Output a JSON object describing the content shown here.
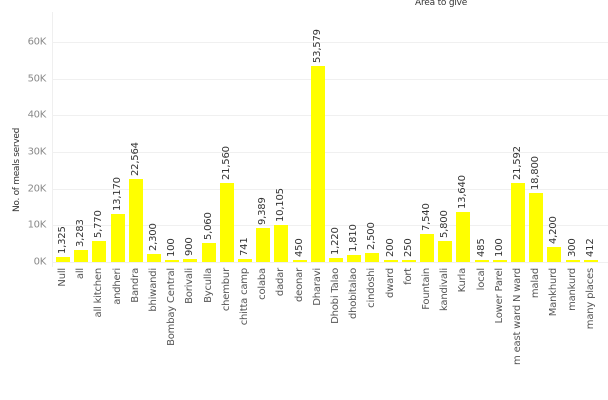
{
  "chart_data": {
    "type": "bar",
    "title": "Area to give",
    "xlabel": "",
    "ylabel": "No. of meals served",
    "ylim": [
      0,
      60000
    ],
    "yticks": [
      "0K",
      "10K",
      "20K",
      "30K",
      "40K",
      "50K",
      "60K"
    ],
    "grid": true,
    "legend": null,
    "bar_color": "#ffff00",
    "categories": [
      "Null",
      "all",
      "all kitchen",
      "andheri",
      "Bandra",
      "bhiwandi",
      "Bombay Central",
      "Borivali",
      "Byculla",
      "chembur",
      "chitta camp",
      "colaba",
      "dadar",
      "deonar",
      "Dharavi",
      "Dhobi Talao",
      "dhobitalao",
      "cindoshi",
      "dward",
      "fort",
      "Fountain",
      "kandivali",
      "Kurla",
      "local",
      "Lower Parel",
      "m east ward N ward",
      "malad",
      "Mankhurd",
      "mankurd",
      "many places",
      ""
    ],
    "values": [
      1325,
      3283,
      5770,
      13170,
      22564,
      2300,
      100,
      900,
      5060,
      21560,
      741,
      9389,
      10105,
      450,
      53579,
      1220,
      1810,
      2500,
      200,
      250,
      7540,
      5800,
      13640,
      485,
      100,
      21592,
      18800,
      4200,
      300,
      412,
      300
    ],
    "value_labels": [
      "1,325",
      "3,283",
      "5,770",
      "13,170",
      "22,564",
      "2,300",
      "100",
      "900",
      "5,060",
      "21,560",
      "741",
      "9,389",
      "10,105",
      "450",
      "53,579",
      "1,220",
      "1,810",
      "2,500",
      "200",
      "250",
      "7,540",
      "5,800",
      "13,640",
      "485",
      "100",
      "21,592",
      "18,800",
      "4,200",
      "300",
      "412",
      ""
    ]
  }
}
